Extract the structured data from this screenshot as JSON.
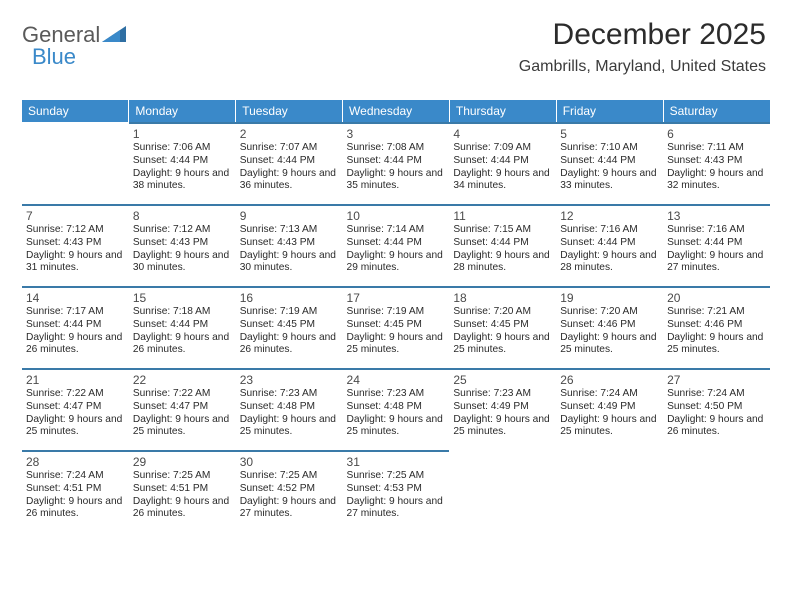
{
  "logo": {
    "text1": "General",
    "text2": "Blue"
  },
  "header": {
    "title": "December 2025",
    "location": "Gambrills, Maryland, United States"
  },
  "colors": {
    "header_bg": "#3a89c9",
    "header_fg": "#ffffff",
    "cell_border": "#3a7aa8",
    "text": "#2a2a2a",
    "daynum": "#4a4a4a"
  },
  "daysOfWeek": [
    "Sunday",
    "Monday",
    "Tuesday",
    "Wednesday",
    "Thursday",
    "Friday",
    "Saturday"
  ],
  "startWeekday": 1,
  "cells": [
    {
      "n": 1,
      "sr": "7:06 AM",
      "ss": "4:44 PM",
      "dl": "9 hours and 38 minutes."
    },
    {
      "n": 2,
      "sr": "7:07 AM",
      "ss": "4:44 PM",
      "dl": "9 hours and 36 minutes."
    },
    {
      "n": 3,
      "sr": "7:08 AM",
      "ss": "4:44 PM",
      "dl": "9 hours and 35 minutes."
    },
    {
      "n": 4,
      "sr": "7:09 AM",
      "ss": "4:44 PM",
      "dl": "9 hours and 34 minutes."
    },
    {
      "n": 5,
      "sr": "7:10 AM",
      "ss": "4:44 PM",
      "dl": "9 hours and 33 minutes."
    },
    {
      "n": 6,
      "sr": "7:11 AM",
      "ss": "4:43 PM",
      "dl": "9 hours and 32 minutes."
    },
    {
      "n": 7,
      "sr": "7:12 AM",
      "ss": "4:43 PM",
      "dl": "9 hours and 31 minutes."
    },
    {
      "n": 8,
      "sr": "7:12 AM",
      "ss": "4:43 PM",
      "dl": "9 hours and 30 minutes."
    },
    {
      "n": 9,
      "sr": "7:13 AM",
      "ss": "4:43 PM",
      "dl": "9 hours and 30 minutes."
    },
    {
      "n": 10,
      "sr": "7:14 AM",
      "ss": "4:44 PM",
      "dl": "9 hours and 29 minutes."
    },
    {
      "n": 11,
      "sr": "7:15 AM",
      "ss": "4:44 PM",
      "dl": "9 hours and 28 minutes."
    },
    {
      "n": 12,
      "sr": "7:16 AM",
      "ss": "4:44 PM",
      "dl": "9 hours and 28 minutes."
    },
    {
      "n": 13,
      "sr": "7:16 AM",
      "ss": "4:44 PM",
      "dl": "9 hours and 27 minutes."
    },
    {
      "n": 14,
      "sr": "7:17 AM",
      "ss": "4:44 PM",
      "dl": "9 hours and 26 minutes."
    },
    {
      "n": 15,
      "sr": "7:18 AM",
      "ss": "4:44 PM",
      "dl": "9 hours and 26 minutes."
    },
    {
      "n": 16,
      "sr": "7:19 AM",
      "ss": "4:45 PM",
      "dl": "9 hours and 26 minutes."
    },
    {
      "n": 17,
      "sr": "7:19 AM",
      "ss": "4:45 PM",
      "dl": "9 hours and 25 minutes."
    },
    {
      "n": 18,
      "sr": "7:20 AM",
      "ss": "4:45 PM",
      "dl": "9 hours and 25 minutes."
    },
    {
      "n": 19,
      "sr": "7:20 AM",
      "ss": "4:46 PM",
      "dl": "9 hours and 25 minutes."
    },
    {
      "n": 20,
      "sr": "7:21 AM",
      "ss": "4:46 PM",
      "dl": "9 hours and 25 minutes."
    },
    {
      "n": 21,
      "sr": "7:22 AM",
      "ss": "4:47 PM",
      "dl": "9 hours and 25 minutes."
    },
    {
      "n": 22,
      "sr": "7:22 AM",
      "ss": "4:47 PM",
      "dl": "9 hours and 25 minutes."
    },
    {
      "n": 23,
      "sr": "7:23 AM",
      "ss": "4:48 PM",
      "dl": "9 hours and 25 minutes."
    },
    {
      "n": 24,
      "sr": "7:23 AM",
      "ss": "4:48 PM",
      "dl": "9 hours and 25 minutes."
    },
    {
      "n": 25,
      "sr": "7:23 AM",
      "ss": "4:49 PM",
      "dl": "9 hours and 25 minutes."
    },
    {
      "n": 26,
      "sr": "7:24 AM",
      "ss": "4:49 PM",
      "dl": "9 hours and 25 minutes."
    },
    {
      "n": 27,
      "sr": "7:24 AM",
      "ss": "4:50 PM",
      "dl": "9 hours and 26 minutes."
    },
    {
      "n": 28,
      "sr": "7:24 AM",
      "ss": "4:51 PM",
      "dl": "9 hours and 26 minutes."
    },
    {
      "n": 29,
      "sr": "7:25 AM",
      "ss": "4:51 PM",
      "dl": "9 hours and 26 minutes."
    },
    {
      "n": 30,
      "sr": "7:25 AM",
      "ss": "4:52 PM",
      "dl": "9 hours and 27 minutes."
    },
    {
      "n": 31,
      "sr": "7:25 AM",
      "ss": "4:53 PM",
      "dl": "9 hours and 27 minutes."
    }
  ],
  "labels": {
    "sunrise": "Sunrise:",
    "sunset": "Sunset:",
    "daylight": "Daylight:"
  }
}
